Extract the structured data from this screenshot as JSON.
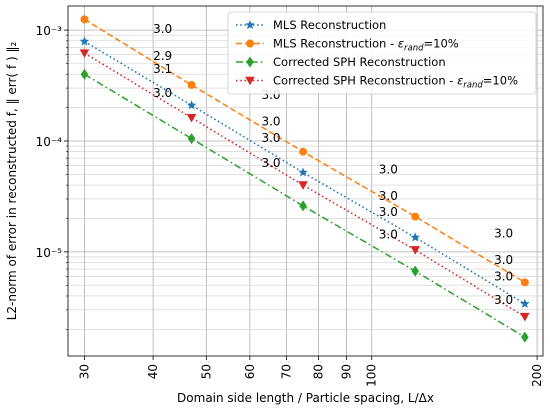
{
  "chart_data": {
    "type": "line",
    "title": "",
    "xlabel": "Domain side length / Particle spacing, L/Δx",
    "ylabel": "L2-norm of error in reconstructed f, ‖ err( f ) ‖₂",
    "xscale": "log",
    "yscale": "log",
    "xlim": [
      28,
      205
    ],
    "ylim": [
      1.15e-06,
      0.00165
    ],
    "xticks": [
      30,
      40,
      50,
      60,
      70,
      80,
      90,
      100,
      200
    ],
    "xticklabels": [
      "30",
      "40",
      "50",
      "60",
      "70",
      "80",
      "90",
      "100",
      "200"
    ],
    "yticks": [
      1e-05,
      0.0001,
      0.001
    ],
    "yticklabels": [
      "10⁻⁵",
      "10⁻⁴",
      "10⁻³"
    ],
    "grid": "both-major-minor",
    "legend_position": "top-right",
    "x": [
      30,
      47,
      75,
      120,
      190
    ],
    "series": [
      {
        "name": "MLS Reconstruction",
        "name_parts": [
          "MLS Reconstruction",
          "",
          ""
        ],
        "color": "#1f77b4",
        "linestyle": "dotted",
        "marker": "star",
        "values": [
          0.00079,
          0.00021,
          5.2e-05,
          1.35e-05,
          3.4e-06
        ]
      },
      {
        "name": "MLS Reconstruction - ε_rand=10%",
        "name_parts": [
          "MLS Reconstruction - ",
          "ε",
          "rand",
          "=10%"
        ],
        "color": "#ff7f0e",
        "linestyle": "dashed",
        "marker": "circle",
        "values": [
          0.00125,
          0.00032,
          8e-05,
          2.08e-05,
          5.3e-06
        ]
      },
      {
        "name": "Corrected SPH Reconstruction",
        "name_parts": [
          "Corrected SPH Reconstruction",
          "",
          ""
        ],
        "color": "#2ca02c",
        "linestyle": "dashdot",
        "marker": "diamond",
        "values": [
          0.0004,
          0.000105,
          2.6e-05,
          6.7e-06,
          1.7e-06
        ]
      },
      {
        "name": "Corrected SPH Reconstruction - ε_rand=10%",
        "name_parts": [
          "Corrected SPH Reconstruction - ",
          "ε",
          "rand",
          "=10%"
        ],
        "color": "#d62728",
        "linestyle": "dotted",
        "marker": "triangle-down",
        "values": [
          0.00062,
          0.000162,
          4e-05,
          1.04e-05,
          2.6e-06
        ]
      }
    ],
    "annotations": [
      {
        "text": "3.0",
        "x": 40,
        "y": 0.00094
      },
      {
        "text": "2.9",
        "x": 40,
        "y": 0.00054
      },
      {
        "text": "3.1",
        "x": 40,
        "y": 0.00041
      },
      {
        "text": "3.0",
        "x": 40,
        "y": 0.00025
      },
      {
        "text": "3.0",
        "x": 63,
        "y": 0.00024
      },
      {
        "text": "3.0",
        "x": 63,
        "y": 0.000138
      },
      {
        "text": "3.0",
        "x": 63,
        "y": 9.8e-05
      },
      {
        "text": "3.0",
        "x": 63,
        "y": 5.8e-05
      },
      {
        "text": "3.0",
        "x": 103,
        "y": 5.1e-05
      },
      {
        "text": "3.0",
        "x": 103,
        "y": 2.95e-05
      },
      {
        "text": "3.0",
        "x": 103,
        "y": 2.1e-05
      },
      {
        "text": "3.0",
        "x": 103,
        "y": 1.32e-05
      },
      {
        "text": "3.0",
        "x": 167,
        "y": 1.35e-05
      },
      {
        "text": "3.0",
        "x": 167,
        "y": 7.8e-06
      },
      {
        "text": "3.0",
        "x": 167,
        "y": 5.5e-06
      },
      {
        "text": "3.0",
        "x": 167,
        "y": 3.4e-06
      }
    ]
  }
}
